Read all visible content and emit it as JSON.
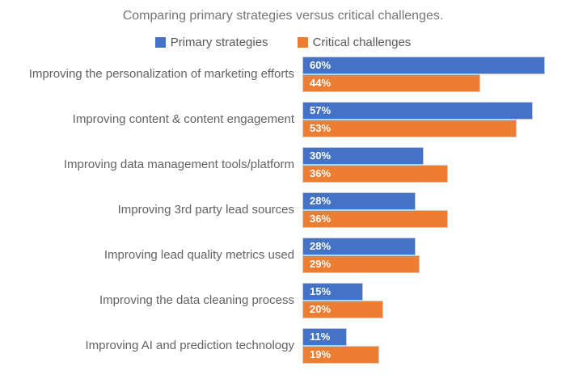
{
  "chart_data": {
    "type": "bar",
    "orientation": "horizontal",
    "title": "Comparing primary strategies versus critical challenges.",
    "categories": [
      "Improving the personalization of marketing efforts",
      "Improving content & content engagement",
      "Improving data management tools/platform",
      "Improving 3rd party lead sources",
      "Improving lead quality metrics used",
      "Improving the data cleaning process",
      "Improving AI and prediction technology"
    ],
    "series": [
      {
        "name": "Primary strategies",
        "color": "#4472c4",
        "values": [
          60,
          57,
          30,
          28,
          28,
          15,
          11
        ]
      },
      {
        "name": "Critical challenges",
        "color": "#ed7d31",
        "values": [
          44,
          53,
          36,
          36,
          29,
          20,
          19
        ]
      }
    ],
    "value_format": "percent",
    "data_labels": "inside-start white bold",
    "legend_position": "top-center",
    "xlim": [
      0,
      65
    ],
    "grid": false,
    "colors": {
      "title_text": "#767676",
      "legend_text": "#595959",
      "category_text": "#636363",
      "bar_border": "#cdcbca",
      "data_label_text": "#ffffff",
      "background": "#ffffff"
    }
  }
}
